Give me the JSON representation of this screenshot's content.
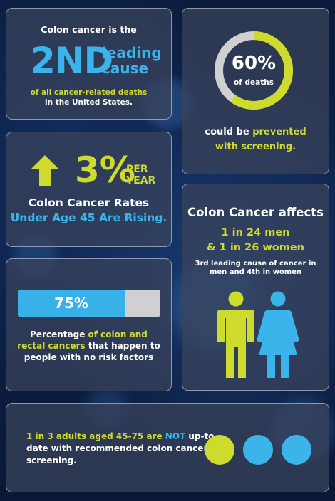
{
  "colors": {
    "lime": "#cfdb2c",
    "blue": "#3ab4ea",
    "gray": "#d0d0d3"
  },
  "rank_card": {
    "intro": "Colon cancer is the",
    "rank": "2ND",
    "rank_word1": "leading",
    "rank_word2": "cause",
    "line1": "of all cancer-related deaths",
    "line2": "in the United States."
  },
  "prevent_card": {
    "percent": "60%",
    "percent_label": "of deaths",
    "percent_value": 60,
    "line1_prefix": "could be ",
    "line1_highlight": "prevented",
    "line2": "with screening."
  },
  "rising_card": {
    "arrow_icon": "arrow-up-icon",
    "value": "3%",
    "per_line1": "PER",
    "per_line2": "YEAR",
    "line1": "Colon Cancer Rates",
    "line2": "Under Age 45 Are Rising."
  },
  "affects_card": {
    "heading": "Colon Cancer affects",
    "men": "1 in 24 men",
    "women": "& 1 in 26 women",
    "note": "3rd leading cause of cancer in men and 4th in women",
    "icons": [
      "man-icon",
      "woman-icon"
    ]
  },
  "risk_card": {
    "bar_label": "75%",
    "bar_value": 75,
    "text_prefix": "Percentage ",
    "text_highlight": "of colon and rectal cancers",
    "text_suffix": " that happen to people with no risk factors"
  },
  "screen_card": {
    "highlight1": "1 in 3 adults aged 45-75 are ",
    "highlight2": "NOT",
    "rest": " up-to-date with recommended colon cancer screening.",
    "dots": [
      "#cfdb2c",
      "#3ab4ea",
      "#3ab4ea"
    ]
  }
}
